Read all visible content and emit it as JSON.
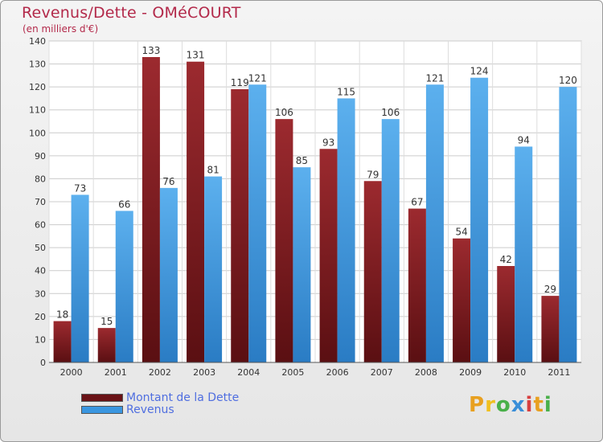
{
  "chart_data": {
    "type": "bar",
    "title": "Revenus/Dette - OMéCOURT",
    "subtitle": "(en milliers d'€)",
    "categories": [
      "2000",
      "2001",
      "2002",
      "2003",
      "2004",
      "2005",
      "2006",
      "2007",
      "2008",
      "2009",
      "2010",
      "2011"
    ],
    "series": [
      {
        "name": "Montant de la Dette",
        "color": "#8b1f24",
        "values": [
          18,
          15,
          133,
          131,
          119,
          106,
          93,
          79,
          67,
          54,
          42,
          29
        ]
      },
      {
        "name": "Revenus",
        "color": "#3a96e0",
        "values": [
          73,
          66,
          76,
          81,
          121,
          85,
          115,
          106,
          121,
          124,
          94,
          120
        ]
      }
    ],
    "ylim": [
      0,
      140
    ],
    "yticks": [
      0,
      10,
      20,
      30,
      40,
      50,
      60,
      70,
      80,
      90,
      100,
      110,
      120,
      130,
      140
    ],
    "grid": true,
    "legend": "bottom-left"
  },
  "logo": {
    "letters": [
      "P",
      "r",
      "o",
      "x",
      "i",
      "t",
      "i"
    ]
  }
}
